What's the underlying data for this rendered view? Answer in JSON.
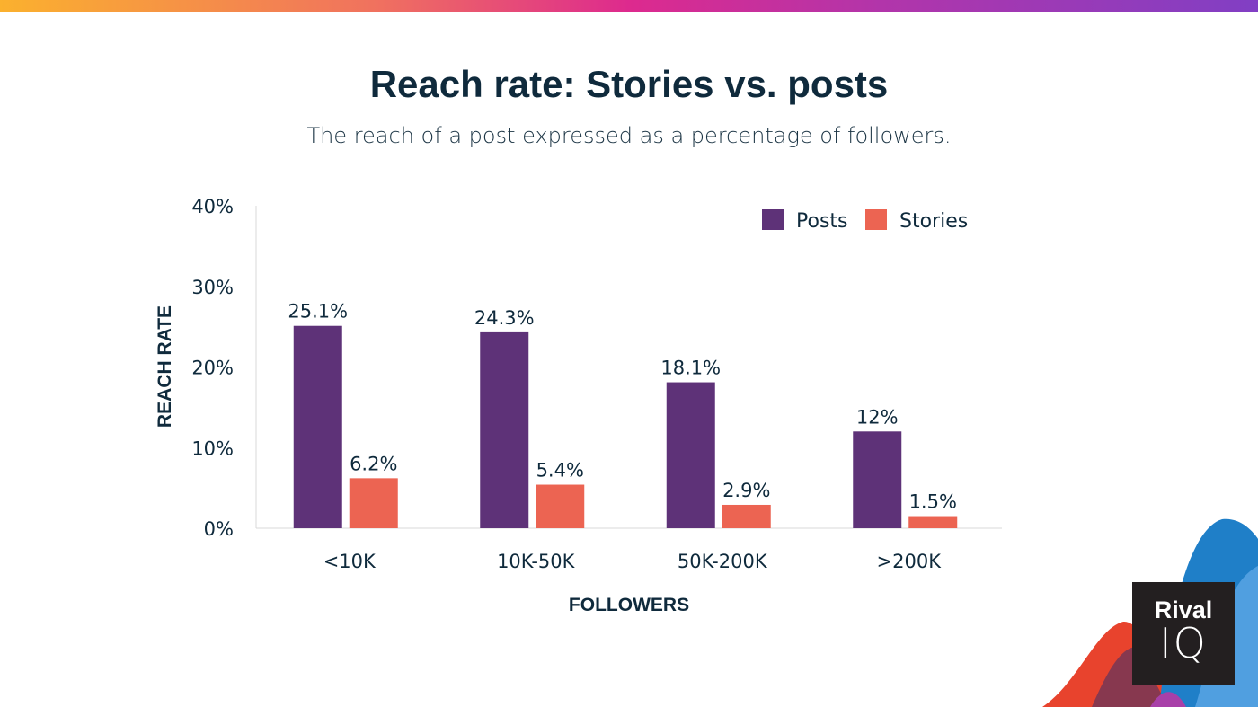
{
  "colors": {
    "posts": "#5e3278",
    "stories": "#ec6452",
    "text": "#0f2a3c",
    "axis": "#d9d9d9"
  },
  "header": {
    "title": "Reach rate: Stories vs. posts",
    "subtitle": "The reach of a post expressed as a percentage of followers."
  },
  "chart_data": {
    "type": "bar",
    "title": "Reach rate: Stories vs. posts",
    "subtitle": "The reach of a post expressed as a percentage of followers.",
    "xlabel": "FOLLOWERS",
    "ylabel": "REACH RATE",
    "ylim": [
      0,
      40
    ],
    "yticks": [
      0,
      10,
      20,
      30,
      40
    ],
    "ytick_labels": [
      "0%",
      "10%",
      "20%",
      "30%",
      "40%"
    ],
    "categories": [
      "<10K",
      "10K-50K",
      "50K-200K",
      ">200K"
    ],
    "series": [
      {
        "name": "Posts",
        "values": [
          25.1,
          24.3,
          18.1,
          12
        ],
        "labels": [
          "25.1%",
          "24.3%",
          "18.1%",
          "12%"
        ]
      },
      {
        "name": "Stories",
        "values": [
          6.2,
          5.4,
          2.9,
          1.5
        ],
        "labels": [
          "6.2%",
          "5.4%",
          "2.9%",
          "1.5%"
        ]
      }
    ],
    "legend": "top-right",
    "grid": false
  },
  "logo": {
    "line1": "Rival",
    "line2": "IQ"
  }
}
